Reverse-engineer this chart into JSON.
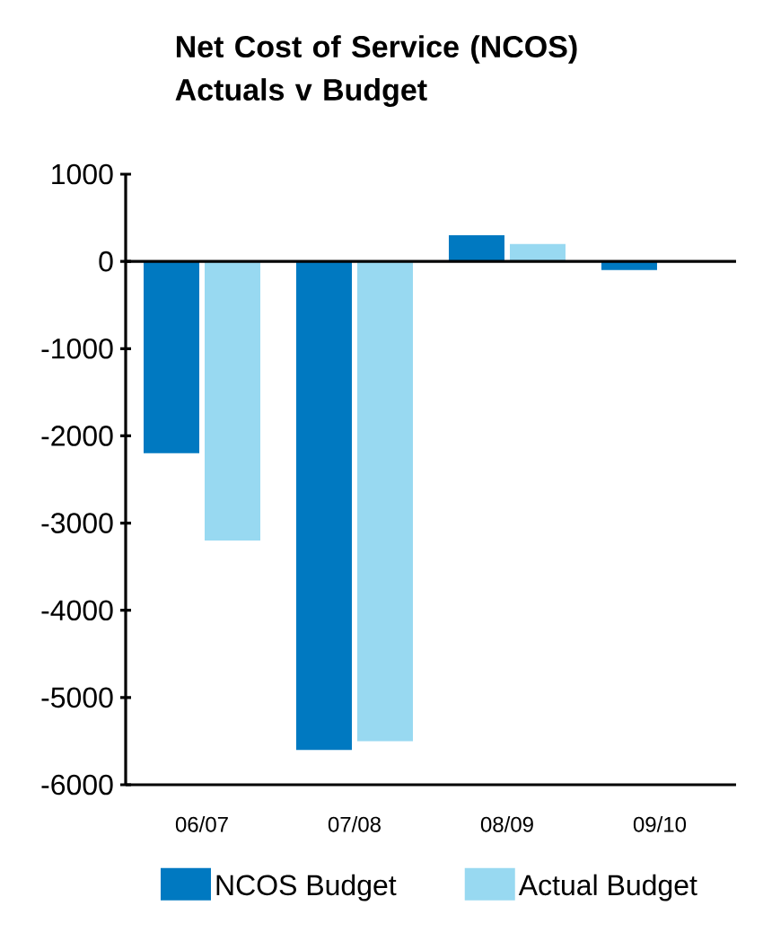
{
  "chart_data": {
    "type": "bar",
    "title": "Net Cost of Service (NCOS) Actuals v Budget",
    "categories": [
      "06/07",
      "07/08",
      "08/09",
      "09/10"
    ],
    "series": [
      {
        "name": "NCOS Budget",
        "color": "#0079c1",
        "values": [
          -2200,
          -5600,
          300,
          -100
        ]
      },
      {
        "name": "Actual Budget",
        "color": "#98d9f1",
        "values": [
          -3200,
          -5500,
          200,
          null
        ]
      }
    ],
    "ylim": [
      -6000,
      1000
    ],
    "yticks": [
      -6000,
      -5000,
      -4000,
      -3000,
      -2000,
      -1000,
      0,
      1000
    ],
    "legend": "bottom"
  }
}
